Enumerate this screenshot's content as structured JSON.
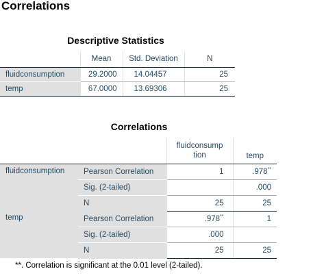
{
  "page_title": "Correlations",
  "descriptive_statistics": {
    "title": "Descriptive Statistics",
    "columns": [
      "Mean",
      "Std. Deviation",
      "N"
    ],
    "rows": [
      {
        "label": "fluidconsumption",
        "mean": "29.2000",
        "sd": "14.04457",
        "n": "25"
      },
      {
        "label": "temp",
        "mean": "67.0000",
        "sd": "13.69306",
        "n": "25"
      }
    ]
  },
  "correlations": {
    "title": "Correlations",
    "col_fluid_line1": "fluidconsump",
    "col_fluid_line2": "tion",
    "col_temp": "temp",
    "groups": [
      {
        "variable": "fluidconsumption",
        "pearson_label": "Pearson Correlation",
        "pearson_fluid": "1",
        "pearson_temp": ".978",
        "pearson_temp_sup": "**",
        "sig_label": "Sig. (2-tailed)",
        "sig_fluid": "",
        "sig_temp": ".000",
        "n_label": "N",
        "n_fluid": "25",
        "n_temp": "25"
      },
      {
        "variable": "temp",
        "pearson_label": "Pearson Correlation",
        "pearson_fluid": ".978",
        "pearson_fluid_sup": "**",
        "pearson_temp": "1",
        "sig_label": "Sig. (2-tailed)",
        "sig_fluid": ".000",
        "sig_temp": "",
        "n_label": "N",
        "n_fluid": "25",
        "n_temp": "25"
      }
    ],
    "footnote": "**. Correlation is significant at the 0.01 level (2-tailed)."
  }
}
